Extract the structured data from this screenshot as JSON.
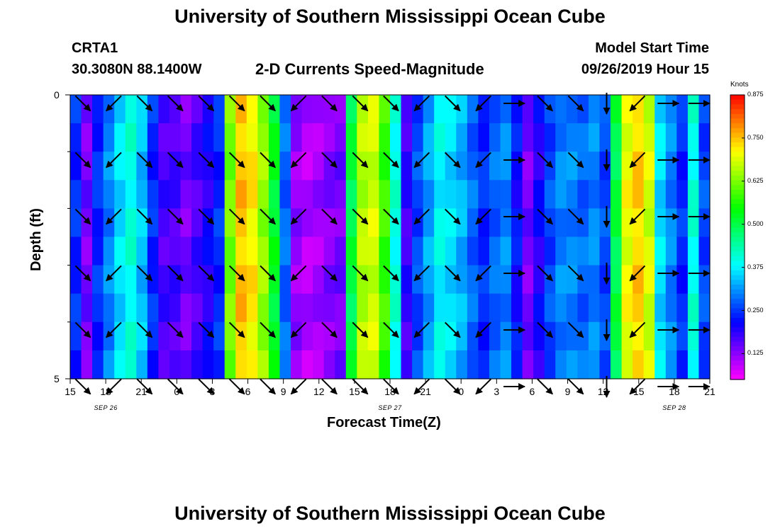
{
  "page": {
    "title": "University of Southern Mississippi Ocean Cube",
    "footer_title": "University of Southern Mississippi Ocean Cube",
    "station_id": "CRTA1",
    "location": "30.3080N 88.1400W",
    "plot_title": "2-D Currents Speed-Magnitude",
    "model_label": "Model Start Time",
    "model_time": "09/26/2019 Hour 15"
  },
  "chart_data": {
    "type": "heatmap",
    "title": "2-D Currents Speed-Magnitude",
    "xlabel": "Forecast Time(Z)",
    "ylabel": "Depth (ft)",
    "y_ticks": [
      "0",
      "5"
    ],
    "ylim": [
      0,
      5
    ],
    "x_ticks": [
      "15",
      "18",
      "21",
      "0",
      "3",
      "6",
      "9",
      "12",
      "15",
      "18",
      "21",
      "0",
      "3",
      "6",
      "9",
      "12",
      "15",
      "18",
      "21"
    ],
    "date_labels": [
      {
        "label": "SEP 26",
        "tick_index": 1
      },
      {
        "label": "SEP 27",
        "tick_index": 9
      },
      {
        "label": "SEP 28",
        "tick_index": 17
      }
    ],
    "colorbar": {
      "unit": "Knots",
      "min": 0.05,
      "max": 0.875,
      "tick_values": [
        0.125,
        0.25,
        0.375,
        0.5,
        0.625,
        0.75,
        0.875
      ],
      "tick_labels": [
        "0.125",
        "0.250",
        "0.375",
        "0.500",
        "0.625",
        "0.750",
        "0.875"
      ]
    },
    "speed_by_hour": [
      0.24,
      0.14,
      0.24,
      0.3,
      0.36,
      0.4,
      0.34,
      0.24,
      0.17,
      0.17,
      0.14,
      0.17,
      0.2,
      0.24,
      0.62,
      0.75,
      0.72,
      0.64,
      0.52,
      0.28,
      0.12,
      0.1,
      0.11,
      0.13,
      0.14,
      0.5,
      0.66,
      0.68,
      0.58,
      0.4,
      0.18,
      0.26,
      0.32,
      0.38,
      0.36,
      0.33,
      0.28,
      0.24,
      0.28,
      0.3,
      0.22,
      0.14,
      0.2,
      0.26,
      0.3,
      0.3,
      0.28,
      0.3,
      0.26,
      0.5,
      0.7,
      0.74,
      0.68,
      0.36,
      0.3,
      0.24,
      0.4,
      0.26
    ],
    "arrow_directions_deg": [
      315,
      225,
      315,
      315,
      315,
      315,
      315,
      225,
      315,
      315,
      315,
      225,
      315,
      225,
      0,
      315,
      315,
      270,
      225,
      0,
      0
    ]
  }
}
